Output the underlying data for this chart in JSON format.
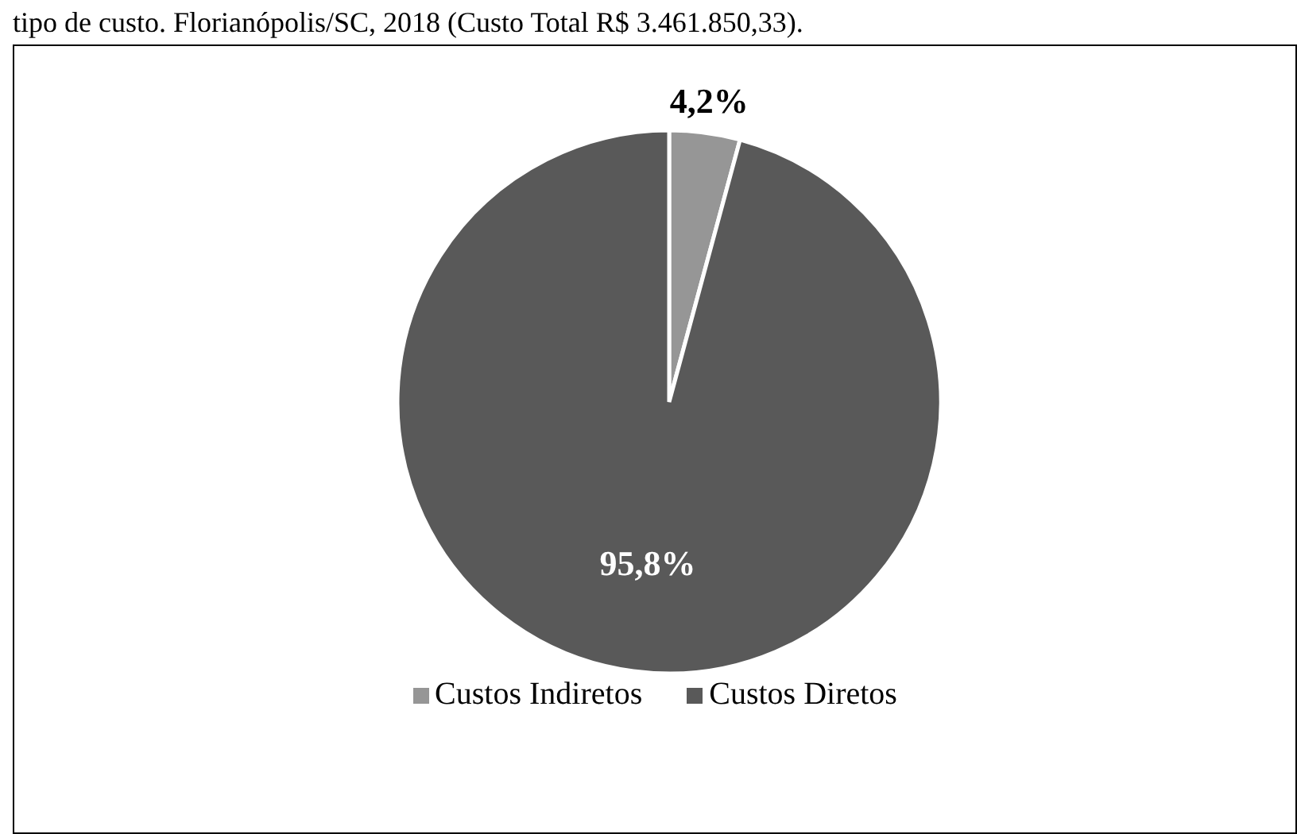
{
  "chart_data": {
    "type": "pie",
    "title": "tipo de custo. Florianópolis/SC, 2018 (Custo Total R$ 3.461.850,33).",
    "categories": [
      "Custos Indiretos",
      "Custos Diretos"
    ],
    "values": [
      4.2,
      95.8
    ],
    "colors": [
      "#969696",
      "#595959"
    ],
    "value_labels": [
      "4,2%",
      "95,8%"
    ],
    "legend": "bottom"
  }
}
